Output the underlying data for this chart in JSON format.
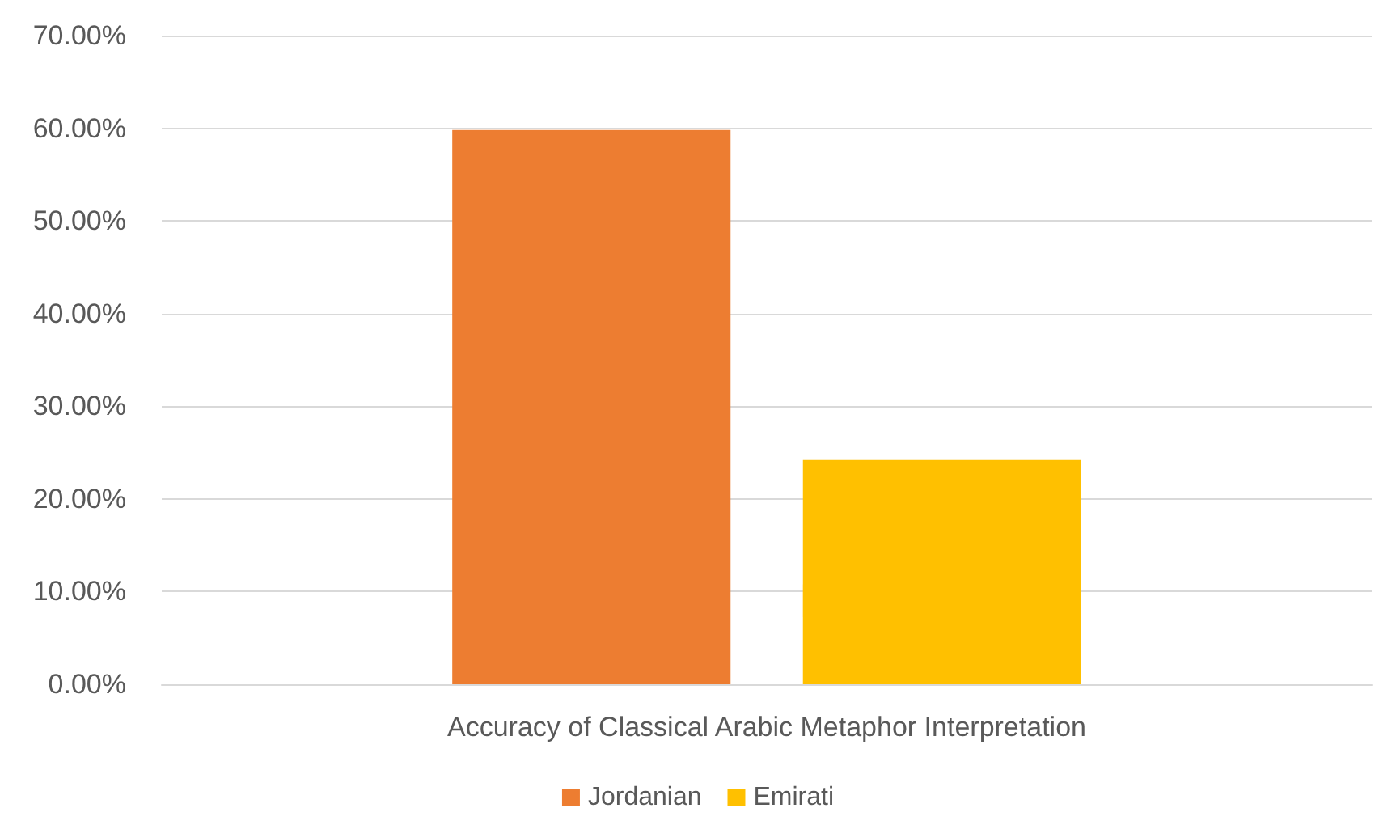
{
  "chart_data": {
    "type": "bar",
    "categories": [
      "Accuracy of Classical Arabic Metaphor Interpretation"
    ],
    "series": [
      {
        "name": "Jordanian",
        "color": "#ed7d31",
        "values": [
          59.8
        ]
      },
      {
        "name": "Emirati",
        "color": "#ffc000",
        "values": [
          24.2
        ]
      }
    ],
    "ylim": [
      0,
      70
    ],
    "yticks": [
      {
        "value": 0,
        "label": "0.00%"
      },
      {
        "value": 10,
        "label": "10.00%"
      },
      {
        "value": 20,
        "label": "20.00%"
      },
      {
        "value": 30,
        "label": "30.00%"
      },
      {
        "value": 40,
        "label": "40.00%"
      },
      {
        "value": 50,
        "label": "50.00%"
      },
      {
        "value": 60,
        "label": "60.00%"
      },
      {
        "value": 70,
        "label": "70.00%"
      }
    ],
    "grid": "y",
    "legend": "bottom"
  }
}
